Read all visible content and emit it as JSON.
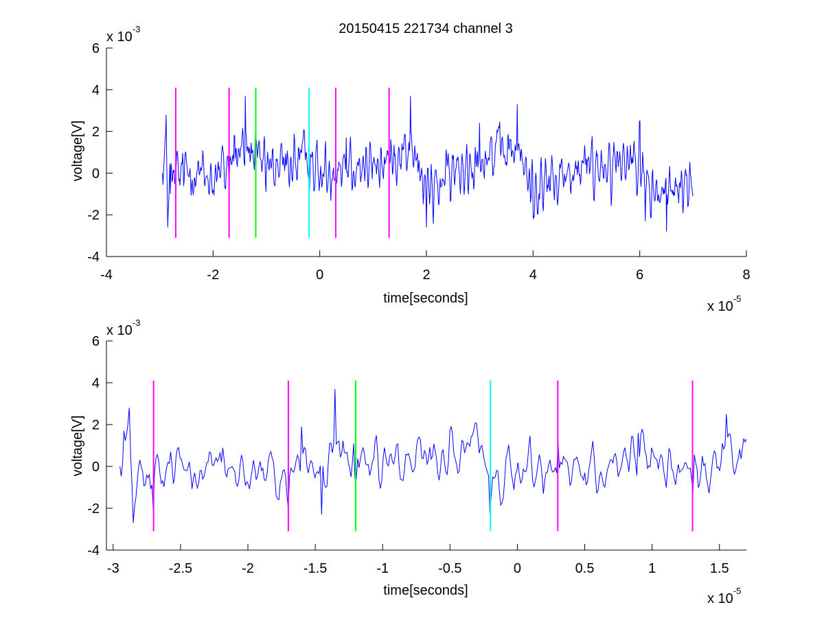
{
  "figure": {
    "title": "20150415 221734 channel 3",
    "x_exponent_label": "x 10",
    "y_exponent_label": "x 10",
    "x_exponent_sup": "-5",
    "y_exponent_sup": "-3"
  },
  "chart_data": [
    {
      "type": "line",
      "xlabel": "time[seconds]",
      "ylabel": "voltage[V]",
      "xlim": [
        -4,
        8
      ],
      "ylim": [
        -4,
        6
      ],
      "xticks": [
        -4,
        -2,
        0,
        2,
        4,
        6,
        8
      ],
      "yticks": [
        -4,
        -2,
        0,
        2,
        4,
        6
      ],
      "xtick_labels": [
        "-4",
        "-2",
        "0",
        "2",
        "4",
        "6",
        "8"
      ],
      "ytick_labels": [
        "-4",
        "-2",
        "0",
        "2",
        "4",
        "6"
      ],
      "x_scale": "x 10^-5 seconds",
      "y_scale": "x 10^-3 V",
      "grid": false,
      "series": [
        {
          "color": "#0000ff",
          "x_range": [
            -2.95,
            7.0
          ],
          "points": 1000,
          "amplitude_rms": 0.9,
          "keypoints": [
            [
              -2.95,
              0.0
            ],
            [
              -2.9,
              1.6
            ],
            [
              -2.88,
              2.8
            ],
            [
              -2.85,
              -2.6
            ],
            [
              -2.8,
              -1.0
            ],
            [
              -2.5,
              0.6
            ],
            [
              -2.0,
              -0.8
            ],
            [
              -1.6,
              1.8
            ],
            [
              -1.4,
              3.7
            ],
            [
              -1.0,
              0.4
            ],
            [
              -0.2,
              2.3
            ],
            [
              0.0,
              -0.5
            ],
            [
              0.5,
              1.7
            ],
            [
              1.0,
              0.5
            ],
            [
              1.7,
              3.7
            ],
            [
              2.0,
              -2.6
            ],
            [
              3.0,
              2.4
            ],
            [
              3.7,
              3.3
            ],
            [
              4.0,
              -2.2
            ],
            [
              5.0,
              0.7
            ],
            [
              6.0,
              2.5
            ],
            [
              6.1,
              -2.3
            ],
            [
              6.5,
              -2.8
            ],
            [
              7.0,
              -1.1
            ]
          ]
        }
      ],
      "markers": [
        {
          "x": -2.7,
          "color": "#ff00ff",
          "y_range": [
            -3.1,
            4.1
          ]
        },
        {
          "x": -1.7,
          "color": "#ff00ff",
          "y_range": [
            -3.1,
            4.1
          ]
        },
        {
          "x": -1.2,
          "color": "#00ff00",
          "y_range": [
            -3.1,
            4.1
          ]
        },
        {
          "x": -0.2,
          "color": "#00ffff",
          "y_range": [
            -3.1,
            4.1
          ]
        },
        {
          "x": 0.3,
          "color": "#ff00ff",
          "y_range": [
            -3.1,
            4.1
          ]
        },
        {
          "x": 1.3,
          "color": "#ff00ff",
          "y_range": [
            -3.1,
            4.1
          ]
        }
      ]
    },
    {
      "type": "line",
      "xlabel": "time[seconds]",
      "ylabel": "voltage[V]",
      "xlim": [
        -3.05,
        1.7
      ],
      "ylim": [
        -4,
        6
      ],
      "xticks": [
        -3,
        -2.5,
        -2,
        -1.5,
        -1,
        -0.5,
        0,
        0.5,
        1,
        1.5
      ],
      "yticks": [
        -4,
        -2,
        0,
        2,
        4,
        6
      ],
      "xtick_labels": [
        "-3",
        "-2.5",
        "-2",
        "-1.5",
        "-1",
        "-0.5",
        "0",
        "0.5",
        "1",
        "1.5"
      ],
      "ytick_labels": [
        "-4",
        "-2",
        "0",
        "2",
        "4",
        "6"
      ],
      "x_scale": "x 10^-5 seconds",
      "y_scale": "x 10^-3 V",
      "grid": false,
      "series": [
        {
          "color": "#0000ff",
          "x_range": [
            -2.95,
            1.7
          ],
          "points": 470,
          "amplitude_rms": 0.9,
          "keypoints": [
            [
              -2.95,
              0.0
            ],
            [
              -2.92,
              1.7
            ],
            [
              -2.88,
              2.8
            ],
            [
              -2.85,
              -2.7
            ],
            [
              -2.7,
              -2.1
            ],
            [
              -2.5,
              0.4
            ],
            [
              -2.2,
              0.2
            ],
            [
              -1.7,
              -2.0
            ],
            [
              -1.6,
              1.9
            ],
            [
              -1.45,
              -2.3
            ],
            [
              -1.35,
              3.7
            ],
            [
              -1.2,
              -0.6
            ],
            [
              -0.5,
              1.7
            ],
            [
              -0.2,
              2.3
            ],
            [
              -0.2,
              -2.3
            ],
            [
              0.3,
              1.2
            ],
            [
              0.5,
              -0.3
            ],
            [
              0.9,
              1.6
            ],
            [
              1.3,
              -1.2
            ],
            [
              1.55,
              2.5
            ],
            [
              1.7,
              1.3
            ]
          ]
        }
      ],
      "markers": [
        {
          "x": -2.7,
          "color": "#ff00ff",
          "y_range": [
            -3.1,
            4.1
          ]
        },
        {
          "x": -1.7,
          "color": "#ff00ff",
          "y_range": [
            -3.1,
            4.1
          ]
        },
        {
          "x": -1.2,
          "color": "#00ff00",
          "y_range": [
            -3.1,
            4.1
          ]
        },
        {
          "x": -0.2,
          "color": "#00ffff",
          "y_range": [
            -3.1,
            4.1
          ]
        },
        {
          "x": 0.3,
          "color": "#ff00ff",
          "y_range": [
            -3.1,
            4.1
          ]
        },
        {
          "x": 1.3,
          "color": "#ff00ff",
          "y_range": [
            -3.1,
            4.1
          ]
        }
      ]
    }
  ]
}
